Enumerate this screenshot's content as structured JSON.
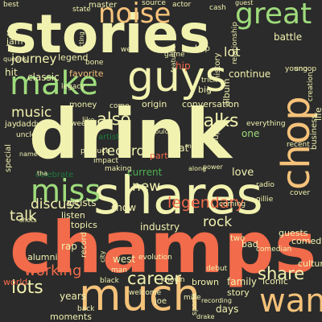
{
  "palette": {
    "background": "#2b2b2b",
    "cream": "#f2f2b0",
    "orange": "#f26b4a",
    "light_green": "#9fdc7c",
    "mid_green": "#4caf50",
    "dark_green": "#1b7a3a",
    "tan": "#f5c27a"
  },
  "words": [
    {
      "text": "stories",
      "color": "cream"
    },
    {
      "text": "drink",
      "color": "cream"
    },
    {
      "text": "champs",
      "color": "orange"
    },
    {
      "text": "shares",
      "color": "cream"
    },
    {
      "text": "guys",
      "color": "cream"
    },
    {
      "text": "much",
      "color": "tan"
    },
    {
      "text": "noise",
      "color": "tan"
    },
    {
      "text": "make",
      "color": "light_green"
    },
    {
      "text": "miss",
      "color": "light_green"
    },
    {
      "text": "great",
      "color": "light_green"
    },
    {
      "text": "want",
      "color": "tan"
    },
    {
      "text": "chop",
      "color": "tan"
    },
    {
      "text": "legendary",
      "color": "orange"
    },
    {
      "text": "also",
      "color": "cream"
    },
    {
      "text": "talks",
      "color": "cream"
    },
    {
      "text": "records",
      "color": "cream"
    },
    {
      "text": "career",
      "color": "cream"
    },
    {
      "text": "lots",
      "color": "cream"
    },
    {
      "text": "share",
      "color": "cream"
    },
    {
      "text": "talk",
      "color": "cream"
    },
    {
      "text": "discuss",
      "color": "cream"
    },
    {
      "text": "music",
      "color": "cream"
    },
    {
      "text": "working",
      "color": "orange"
    },
    {
      "text": "new",
      "color": "cream"
    },
    {
      "text": "journey",
      "color": "cream"
    },
    {
      "text": "classic",
      "color": "cream"
    },
    {
      "text": "favorite",
      "color": "tan"
    },
    {
      "text": "hit",
      "color": "cream"
    },
    {
      "text": "jam",
      "color": "cream"
    },
    {
      "text": "sit",
      "color": "cream"
    },
    {
      "text": "legend",
      "color": "cream"
    },
    {
      "text": "master",
      "color": "cream"
    },
    {
      "text": "lot",
      "color": "cream"
    },
    {
      "text": "battle",
      "color": "cream"
    },
    {
      "text": "continue",
      "color": "cream"
    },
    {
      "text": "hip",
      "color": "orange"
    },
    {
      "text": "rock",
      "color": "cream"
    },
    {
      "text": "one",
      "color": "light_green"
    },
    {
      "text": "love",
      "color": "cream"
    },
    {
      "text": "big",
      "color": "cream"
    },
    {
      "text": "fat",
      "color": "cream"
    },
    {
      "text": "part",
      "color": "orange"
    },
    {
      "text": "show",
      "color": "cream"
    },
    {
      "text": "west",
      "color": "cream"
    },
    {
      "text": "family",
      "color": "cream"
    },
    {
      "text": "iconic",
      "color": "cream"
    },
    {
      "text": "story",
      "color": "cream"
    },
    {
      "text": "days",
      "color": "cream"
    },
    {
      "text": "brown",
      "color": "cream"
    },
    {
      "text": "years",
      "color": "cream"
    },
    {
      "text": "moments",
      "color": "cream"
    },
    {
      "text": "alumni",
      "color": "cream"
    },
    {
      "text": "world",
      "color": "orange"
    },
    {
      "text": "rap",
      "color": "cream"
    },
    {
      "text": "origin",
      "color": "cream"
    },
    {
      "text": "conversation",
      "color": "cream"
    },
    {
      "text": "artists",
      "color": "cream"
    },
    {
      "text": "listen",
      "color": "cream"
    },
    {
      "text": "topics",
      "color": "cream"
    },
    {
      "text": "industry",
      "color": "cream"
    },
    {
      "text": "comedy",
      "color": "cream"
    },
    {
      "text": "culture",
      "color": "cream"
    },
    {
      "text": "guests",
      "color": "cream"
    },
    {
      "text": "coming",
      "color": "cream"
    },
    {
      "text": "two",
      "color": "cream"
    },
    {
      "text": "bad",
      "color": "cream"
    },
    {
      "text": "comedian",
      "color": "cream"
    },
    {
      "text": "joe",
      "color": "cream"
    },
    {
      "text": "mike",
      "color": "cream"
    },
    {
      "text": "debut",
      "color": "cream"
    },
    {
      "text": "welcome",
      "color": "cream"
    },
    {
      "text": "man",
      "color": "cream"
    },
    {
      "text": "black",
      "color": "cream"
    },
    {
      "text": "evolution",
      "color": "cream"
    },
    {
      "text": "known",
      "color": "cream"
    },
    {
      "text": "back",
      "color": "cream"
    },
    {
      "text": "cover",
      "color": "cream"
    },
    {
      "text": "everything",
      "color": "cream"
    },
    {
      "text": "radio",
      "color": "cream"
    },
    {
      "text": "current",
      "color": "mid_green"
    },
    {
      "text": "celebrate",
      "color": "dark_green"
    },
    {
      "text": "artist",
      "color": "dark_green"
    },
    {
      "text": "making",
      "color": "cream"
    },
    {
      "text": "produce",
      "color": "cream"
    },
    {
      "text": "impact",
      "color": "cream"
    },
    {
      "text": "money",
      "color": "cream"
    },
    {
      "text": "daddy",
      "color": "cream"
    },
    {
      "text": "jay",
      "color": "cream"
    },
    {
      "text": "special",
      "color": "cream"
    },
    {
      "text": "like",
      "color": "cream"
    },
    {
      "text": "game",
      "color": "cream"
    },
    {
      "text": "history",
      "color": "cream"
    },
    {
      "text": "hop",
      "color": "cream"
    },
    {
      "text": "cash",
      "color": "cream"
    },
    {
      "text": "guest",
      "color": "cream"
    },
    {
      "text": "well",
      "color": "cream"
    },
    {
      "text": "source",
      "color": "cream"
    },
    {
      "text": "actor",
      "color": "cream"
    },
    {
      "text": "album",
      "color": "cream"
    },
    {
      "text": "group",
      "color": "cream"
    },
    {
      "text": "business",
      "color": "cream"
    },
    {
      "text": "recent",
      "color": "cream"
    },
    {
      "text": "creation",
      "color": "cream"
    },
    {
      "text": "young",
      "color": "cream"
    },
    {
      "text": "relationship",
      "color": "cream"
    },
    {
      "text": "trick",
      "color": "cream"
    },
    {
      "text": "bone",
      "color": "cream"
    },
    {
      "text": "legacy",
      "color": "cream"
    },
    {
      "text": "week",
      "color": "cream"
    },
    {
      "text": "uncle",
      "color": "cream"
    },
    {
      "text": "life",
      "color": "cream"
    },
    {
      "text": "best",
      "color": "cream"
    },
    {
      "text": "state",
      "color": "cream"
    },
    {
      "text": "gillie",
      "color": "cream"
    },
    {
      "text": "snoop",
      "color": "cream"
    },
    {
      "text": "queens",
      "color": "cream"
    },
    {
      "text": "acting",
      "color": "cream"
    },
    {
      "text": "come",
      "color": "cream"
    },
    {
      "text": "record",
      "color": "cream"
    },
    {
      "text": "many",
      "color": "cream"
    },
    {
      "text": "along",
      "color": "cream"
    },
    {
      "text": "would",
      "color": "cream"
    },
    {
      "text": "featured",
      "color": "cream"
    },
    {
      "text": "drake",
      "color": "cream"
    },
    {
      "text": "sports",
      "color": "cream"
    },
    {
      "text": "recording",
      "color": "cream"
    },
    {
      "text": "tha",
      "color": "cream"
    },
    {
      "text": "name",
      "color": "cream"
    },
    {
      "text": "shots",
      "color": "cream"
    },
    {
      "text": "power",
      "color": "cream"
    },
    {
      "text": "city",
      "color": "cream"
    }
  ]
}
